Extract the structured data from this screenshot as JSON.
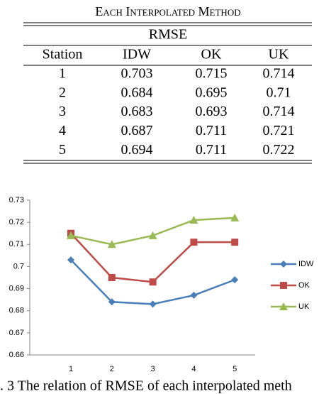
{
  "table": {
    "title": "Each Interpolated Method",
    "group_header": "RMSE",
    "columns": [
      "Station",
      "IDW",
      "OK",
      "UK"
    ],
    "rows": [
      [
        "1",
        0.703,
        0.715,
        0.714
      ],
      [
        "2",
        0.684,
        0.695,
        0.71
      ],
      [
        "3",
        0.683,
        0.693,
        0.714
      ],
      [
        "4",
        0.687,
        0.711,
        0.721
      ],
      [
        "5",
        0.694,
        0.711,
        0.722
      ]
    ]
  },
  "chart_data": {
    "type": "line",
    "categories": [
      "1",
      "2",
      "3",
      "4",
      "5"
    ],
    "series": [
      {
        "name": "IDW",
        "color": "#4a7ebb",
        "marker": "diamond",
        "values": [
          0.703,
          0.684,
          0.683,
          0.687,
          0.694
        ]
      },
      {
        "name": "OK",
        "color": "#be4b48",
        "marker": "square",
        "values": [
          0.715,
          0.695,
          0.693,
          0.711,
          0.711
        ]
      },
      {
        "name": "UK",
        "color": "#98b954",
        "marker": "triangle",
        "values": [
          0.714,
          0.71,
          0.714,
          0.721,
          0.722
        ]
      }
    ],
    "ylim": [
      0.66,
      0.73
    ],
    "yticks": [
      0.66,
      0.67,
      0.68,
      0.69,
      0.7,
      0.71,
      0.72,
      0.73
    ],
    "grid": false,
    "legend": "right"
  },
  "caption": ". 3 The relation of RMSE of each interpolated meth"
}
